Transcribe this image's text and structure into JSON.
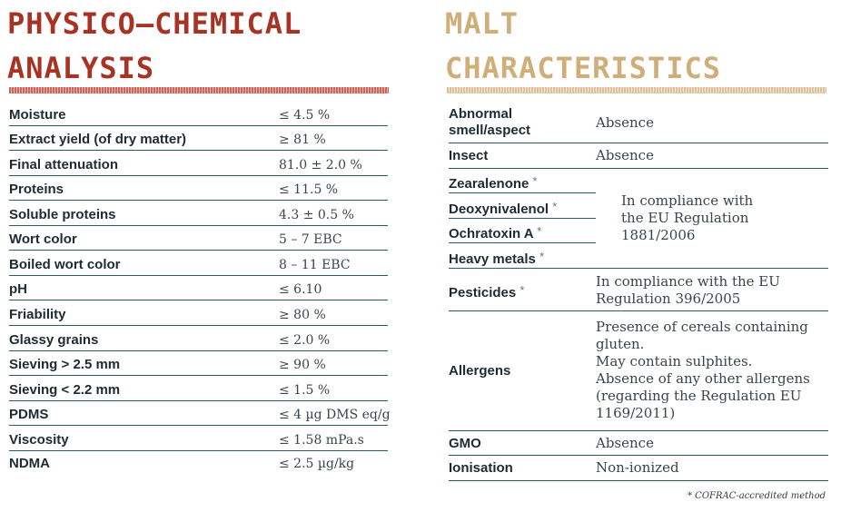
{
  "physico_chemical": {
    "title_line1": "PHYSICO–CHEMICAL",
    "title_line2": "ANALYSIS",
    "rows": [
      {
        "name": "Moisture",
        "value": "≤ 4.5 %"
      },
      {
        "name": "Extract yield (of dry matter)",
        "value": "≥ 81 %"
      },
      {
        "name": "Final attenuation",
        "value": "81.0 ± 2.0 %"
      },
      {
        "name": "Proteins",
        "value": "≤ 11.5 %"
      },
      {
        "name": "Soluble proteins",
        "value": "4.3 ± 0.5 %"
      },
      {
        "name": "Wort color",
        "value": "5 – 7 EBC"
      },
      {
        "name": "Boiled wort color",
        "value": "8 – 11 EBC"
      },
      {
        "name": "pH",
        "value": "≤ 6.10"
      },
      {
        "name": "Friability",
        "value": "≥ 80 %"
      },
      {
        "name": "Glassy grains",
        "value": "≤ 2.0 %"
      },
      {
        "name": "Sieving > 2.5 mm",
        "value": "≥ 90 %"
      },
      {
        "name": "Sieving < 2.2 mm",
        "value": "≤ 1.5 %"
      },
      {
        "name": "PDMS",
        "value": "≤ 4 µg DMS eq/g"
      },
      {
        "name": "Viscosity",
        "value": "≤ 1.58 mPa.s"
      },
      {
        "name": "NDMA",
        "value": "≤ 2.5 µg/kg"
      }
    ]
  },
  "malt": {
    "title_line1": "MALT",
    "title_line2": "CHARACTERISTICS",
    "abnormal": {
      "name_line1": "Abnormal",
      "name_line2": "smell/aspect",
      "value": "Absence"
    },
    "insect": {
      "name": "Insect",
      "value": "Absence"
    },
    "zearalenone": {
      "name": "Zearalenone",
      "mark": "*"
    },
    "deoxynivalenol": {
      "name": "Deoxynivalenol",
      "mark": "*"
    },
    "ochratoxin": {
      "name": "Ochratoxin A",
      "mark": "*"
    },
    "heavy_metals": {
      "name": "Heavy metals",
      "mark": "*"
    },
    "compliance_group": {
      "line1": "In compliance with",
      "line2": "the EU Regulation",
      "line3": "1881/2006"
    },
    "pesticides": {
      "name": "Pesticides",
      "mark": "*",
      "line1": "In compliance with the EU",
      "line2": "Regulation 396/2005"
    },
    "allergens": {
      "name": "Allergens",
      "line1": "Presence of cereals containing",
      "line2": "gluten.",
      "line3": "May contain sulphites.",
      "line4": "Absence of any other allergens",
      "line5": "(regarding the Regulation EU",
      "line6": "1169/2011)"
    },
    "gmo": {
      "name": "GMO",
      "value": "Absence"
    },
    "ionisation": {
      "name": "Ionisation",
      "value": "Non-ionized"
    },
    "footnote": "* COFRAC-accredited method"
  }
}
